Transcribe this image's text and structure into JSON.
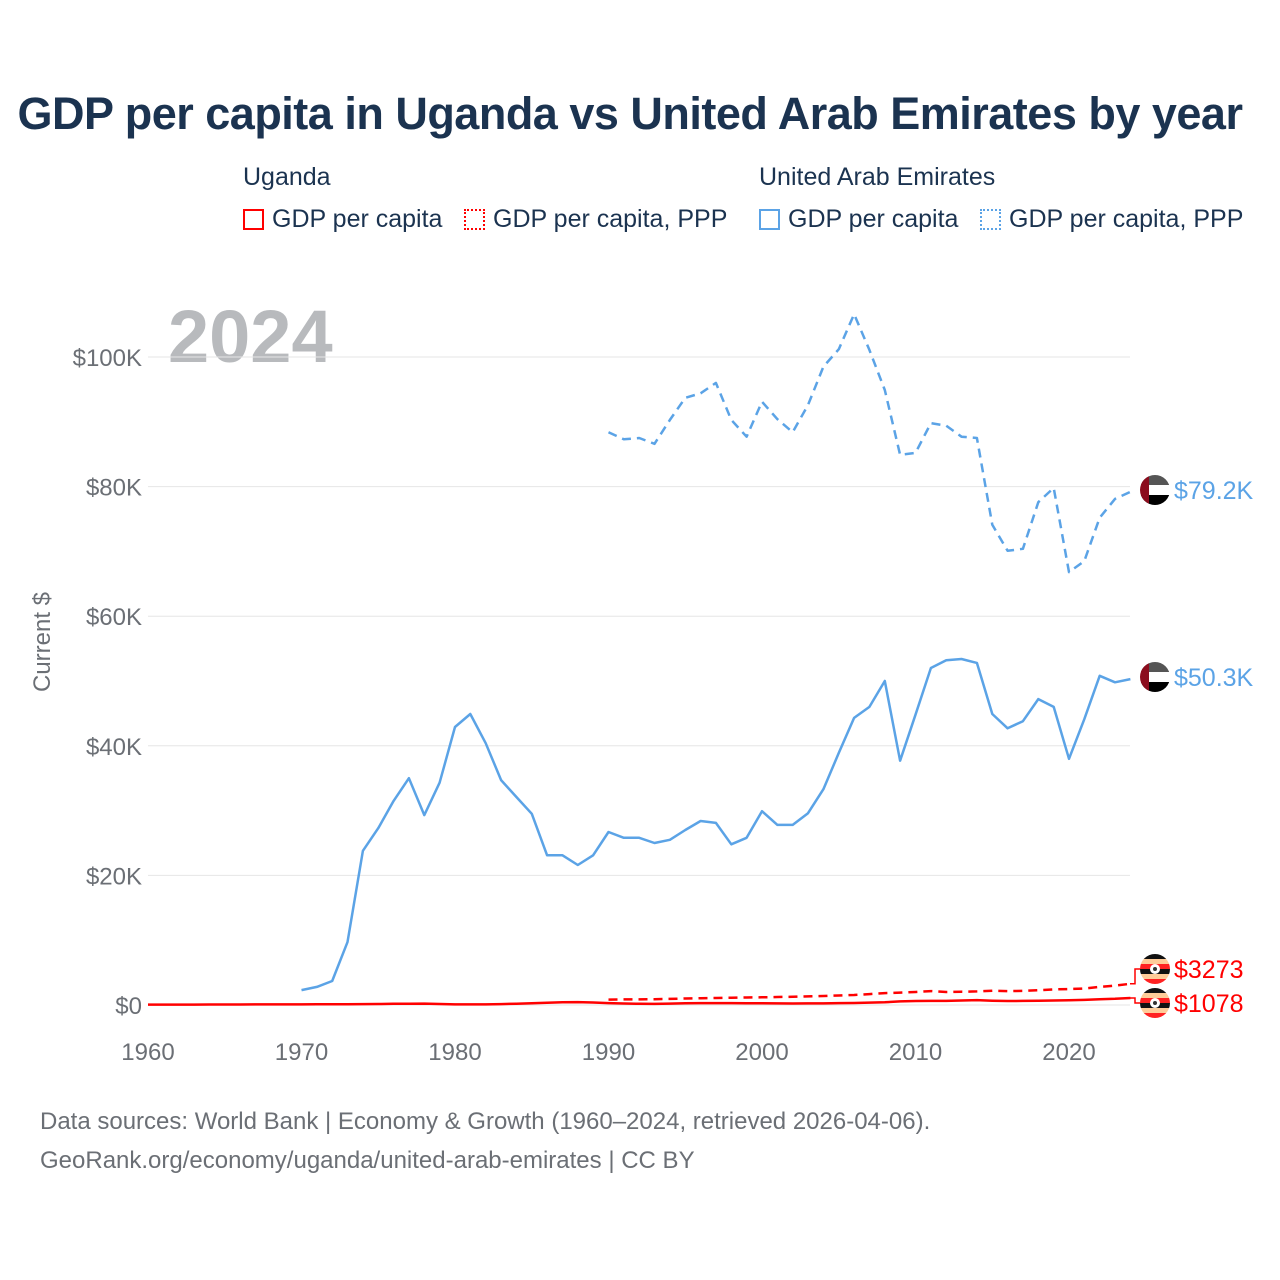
{
  "title": "GDP per capita in Uganda vs United Arab Emirates by year",
  "legend": {
    "groups": [
      {
        "name": "Uganda",
        "items": [
          "GDP per capita",
          "GDP per capita, PPP"
        ],
        "color": "#ff0000"
      },
      {
        "name": "United Arab Emirates",
        "items": [
          "GDP per capita",
          "GDP per capita, PPP"
        ],
        "color": "#5ba3e6"
      }
    ]
  },
  "year_label": "2024",
  "footer": {
    "line1": "Data sources: World Bank | Economy & Growth (1960–2024, retrieved 2026-04-06).",
    "line2": "GeoRank.org/economy/uganda/united-arab-emirates | CC BY"
  },
  "chart_data": {
    "type": "line",
    "title": "GDP per capita in Uganda vs United Arab Emirates by year",
    "xlabel": "",
    "ylabel": "Current $",
    "xlim": [
      1960,
      2024
    ],
    "ylim": [
      0,
      110000
    ],
    "x_ticks": [
      "1960",
      "1970",
      "1980",
      "1990",
      "2000",
      "2010",
      "2020"
    ],
    "y_ticks": [
      {
        "v": 0,
        "label": "$0"
      },
      {
        "v": 20000,
        "label": "$20K"
      },
      {
        "v": 40000,
        "label": "$40K"
      },
      {
        "v": 60000,
        "label": "$60K"
      },
      {
        "v": 80000,
        "label": "$80K"
      },
      {
        "v": 100000,
        "label": "$100K"
      }
    ],
    "grid": true,
    "series": [
      {
        "name": "United Arab Emirates GDP per capita",
        "color": "#5ba3e6",
        "dash": false,
        "start": 1970,
        "end_label": "$50.3K",
        "values": [
          2300,
          2800,
          3700,
          9700,
          23800,
          27300,
          31500,
          35000,
          29300,
          34300,
          42900,
          44900,
          40400,
          34700,
          32100,
          29500,
          23100,
          23100,
          21600,
          23100,
          26700,
          25800,
          25800,
          25000,
          25500,
          27000,
          28400,
          28100,
          24800,
          25800,
          29900,
          27800,
          27800,
          29600,
          33300,
          38900,
          44300,
          46000,
          50000,
          37700,
          44800,
          52000,
          53200,
          53400,
          52800,
          44900,
          42700,
          43800,
          47200,
          46000,
          38000,
          44100,
          50800,
          49800,
          50300
        ]
      },
      {
        "name": "United Arab Emirates GDP per capita, PPP",
        "color": "#5ba3e6",
        "dash": true,
        "start": 1990,
        "end_label": "$79.2K",
        "values": [
          88400,
          87300,
          87500,
          86600,
          90300,
          93700,
          94400,
          96000,
          90300,
          87700,
          93100,
          90400,
          88400,
          92600,
          98500,
          101200,
          106600,
          101100,
          94900,
          84900,
          85200,
          89800,
          89400,
          87700,
          87500,
          74100,
          70100,
          70400,
          77600,
          79800,
          66800,
          68500,
          75200,
          78100,
          79200
        ]
      },
      {
        "name": "Uganda GDP per capita",
        "color": "#ff0000",
        "dash": false,
        "start": 1960,
        "end_label": "$1078",
        "values": [
          63,
          64,
          64,
          68,
          75,
          80,
          82,
          85,
          86,
          92,
          100,
          105,
          110,
          120,
          140,
          160,
          180,
          200,
          210,
          160,
          100,
          90,
          95,
          140,
          200,
          280,
          340,
          420,
          450,
          380,
          290,
          230,
          180,
          170,
          210,
          280,
          290,
          290,
          300,
          270,
          260,
          240,
          230,
          240,
          250,
          290,
          310,
          370,
          420,
          560,
          610,
          640,
          640,
          690,
          750,
          670,
          610,
          640,
          670,
          700,
          720,
          780,
          900,
          960,
          1078
        ]
      },
      {
        "name": "Uganda GDP per capita, PPP",
        "color": "#ff0000",
        "dash": true,
        "start": 1990,
        "end_label": "$3273",
        "values": [
          830,
          860,
          870,
          900,
          940,
          1000,
          1050,
          1080,
          1120,
          1160,
          1190,
          1230,
          1270,
          1320,
          1390,
          1460,
          1540,
          1680,
          1830,
          1920,
          2000,
          2150,
          2000,
          2050,
          2100,
          2200,
          2150,
          2170,
          2280,
          2400,
          2450,
          2550,
          2800,
          3000,
          3273
        ]
      }
    ]
  }
}
